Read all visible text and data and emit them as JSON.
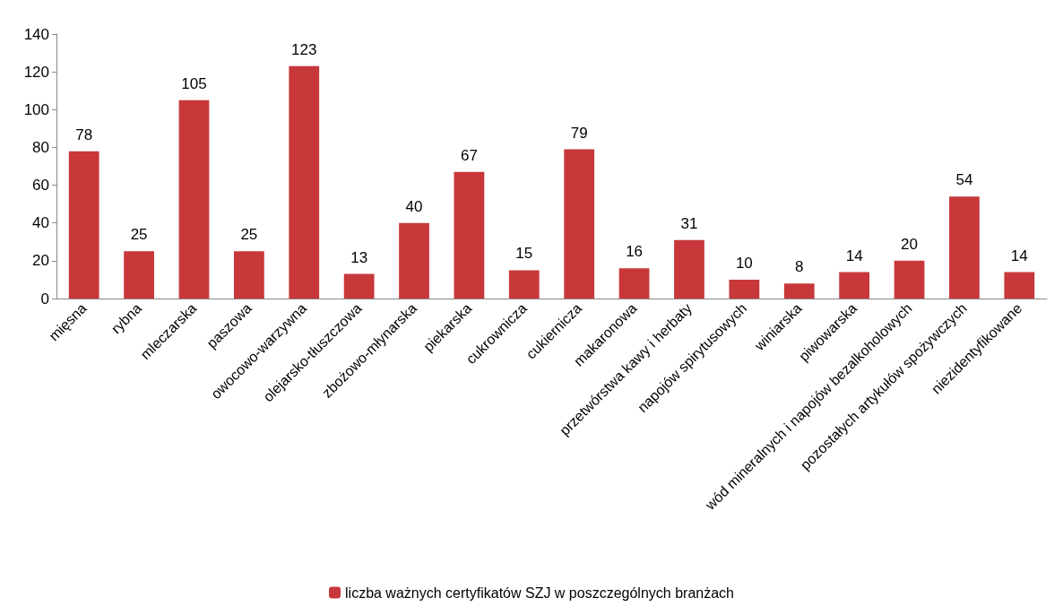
{
  "chart_data": {
    "type": "bar",
    "categories": [
      "mięsna",
      "rybna",
      "mleczarska",
      "paszowa",
      "owocowo-warzywna",
      "olejarsko-tłuszczowa",
      "zbożowo-młynarska",
      "piekarska",
      "cukrownicza",
      "cukiernicza",
      "makaronowa",
      "przetwórstwa kawy i herbaty",
      "napojów spirytusowych",
      "winiarska",
      "piwowarska",
      "wód mineralnych i napojów bezalkoholowych",
      "pozostałych artykułów spożywczych",
      "niezidentyfikowane"
    ],
    "series": [
      {
        "name": "liczba ważnych certyfikatów SZJ w poszczególnych branżach",
        "color": "#c8383a",
        "values": [
          78,
          25,
          105,
          25,
          123,
          13,
          40,
          67,
          15,
          79,
          16,
          31,
          10,
          8,
          14,
          20,
          54,
          14
        ]
      }
    ],
    "ylim": [
      0,
      140
    ],
    "yticks": [
      0,
      20,
      40,
      60,
      80,
      100,
      120,
      140
    ],
    "data_labels": true,
    "legend": "bottom",
    "grid": false
  }
}
